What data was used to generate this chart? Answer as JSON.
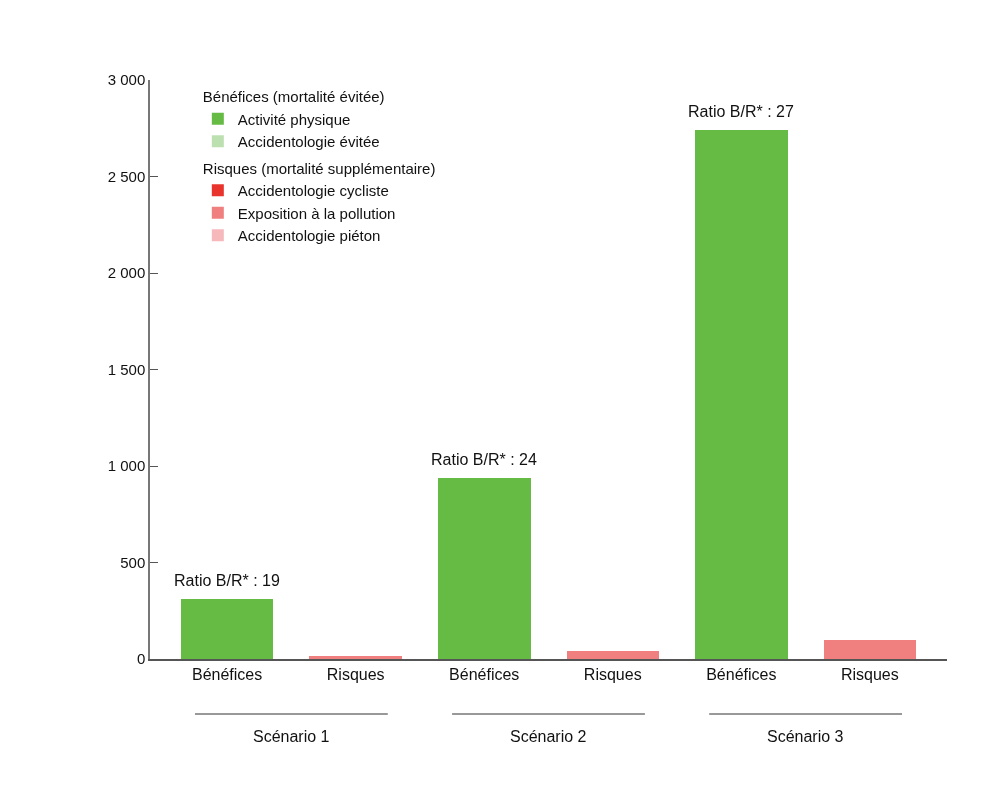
{
  "chart_data": {
    "type": "bar",
    "stacked": true,
    "categories": [
      "Bénéfices",
      "Risques",
      "Bénéfices",
      "Risques",
      "Bénéfices",
      "Risques"
    ],
    "series": [
      {
        "name": "Activité physique",
        "color": "#66bb44",
        "values": [
          313,
          null,
          939,
          null,
          2739,
          null
        ]
      },
      {
        "name": "Accidentologie évitée",
        "color": "#bde0b0",
        "values": [
          null,
          null,
          null,
          null,
          null,
          null
        ]
      },
      {
        "name": "Accidentologie cycliste",
        "color": "#e8342c",
        "values": [
          null,
          null,
          null,
          null,
          null,
          null
        ]
      },
      {
        "name": "Exposition à la pollution",
        "color": "#f08080",
        "values": [
          null,
          16,
          null,
          39,
          null,
          101
        ]
      },
      {
        "name": "Accidentologie piéton",
        "color": "#f7b8bc",
        "values": [
          null,
          null,
          null,
          null,
          null,
          null
        ]
      }
    ],
    "ylim": [
      0,
      3000
    ],
    "yticks": [
      {
        "value": 0,
        "label": "0"
      },
      {
        "value": 500,
        "label": "500"
      },
      {
        "value": 1000,
        "label": "1 000"
      },
      {
        "value": 1500,
        "label": "1 500"
      },
      {
        "value": 2000,
        "label": "2 000"
      },
      {
        "value": 2500,
        "label": "2 500"
      },
      {
        "value": 3000,
        "label": "3 000"
      }
    ],
    "legend": "top left",
    "annotations": [
      "Bénéfices (mortalité évitée)",
      "Risques (mortalité supplémentaire)",
      {
        "text": "Ratio B/R* : 19",
        "y": 313
      },
      {
        "text": "Ratio B/R* : 24",
        "y": 939
      },
      {
        "text": "Ratio B/R* : 27",
        "y": 2739
      },
      "Scénario 1",
      "Scénario 2",
      "Scénario 3"
    ]
  }
}
